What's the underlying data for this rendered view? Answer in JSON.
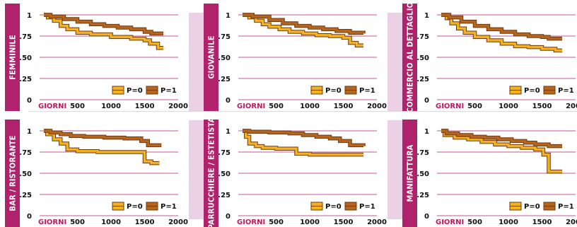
{
  "colors": {
    "side_bar": "#b0226b",
    "grid": "#b0226b",
    "axis_title": "#c2185b",
    "background_band": "#ebd0e6",
    "series_p0": "#f4b223",
    "series_p1": "#b5651d",
    "outline": "#6b3a12"
  },
  "chart_data": [
    {
      "type": "line",
      "title": "FEMMINILE",
      "xlabel": "GIORNI",
      "ylabel": "",
      "xlim": [
        0,
        2000
      ],
      "ylim": [
        0,
        1
      ],
      "xticks": [
        "500",
        "1000",
        "1500",
        "2000"
      ],
      "yticks": [
        "0",
        ".25",
        ".50",
        ".75",
        "1"
      ],
      "legend_position": "bottom-right",
      "series": [
        {
          "name": "P=0",
          "points": [
            [
              0,
              1
            ],
            [
              60,
              0.97
            ],
            [
              150,
              0.93
            ],
            [
              250,
              0.87
            ],
            [
              350,
              0.83
            ],
            [
              500,
              0.79
            ],
            [
              700,
              0.77
            ],
            [
              1000,
              0.74
            ],
            [
              1300,
              0.72
            ],
            [
              1500,
              0.7
            ],
            [
              1580,
              0.66
            ],
            [
              1700,
              0.61
            ],
            [
              1780,
              0.61
            ]
          ]
        },
        {
          "name": "P=1",
          "points": [
            [
              0,
              1
            ],
            [
              100,
              0.98
            ],
            [
              300,
              0.95
            ],
            [
              500,
              0.92
            ],
            [
              700,
              0.89
            ],
            [
              900,
              0.87
            ],
            [
              1100,
              0.85
            ],
            [
              1300,
              0.83
            ],
            [
              1500,
              0.8
            ],
            [
              1600,
              0.78
            ],
            [
              1780,
              0.78
            ]
          ]
        }
      ]
    },
    {
      "type": "line",
      "title": "GIOVANILE",
      "xlabel": "GIORNI",
      "ylabel": "",
      "xlim": [
        0,
        2000
      ],
      "ylim": [
        0,
        1
      ],
      "xticks": [
        "500",
        "1000",
        "1500",
        "2000"
      ],
      "yticks": [
        "0",
        ".25",
        ".50",
        ".75",
        "1"
      ],
      "legend_position": "bottom-right",
      "series": [
        {
          "name": "P=0",
          "points": [
            [
              0,
              1
            ],
            [
              100,
              0.97
            ],
            [
              200,
              0.93
            ],
            [
              300,
              0.89
            ],
            [
              400,
              0.86
            ],
            [
              550,
              0.83
            ],
            [
              700,
              0.8
            ],
            [
              900,
              0.78
            ],
            [
              1100,
              0.76
            ],
            [
              1300,
              0.75
            ],
            [
              1500,
              0.73
            ],
            [
              1600,
              0.67
            ],
            [
              1700,
              0.64
            ],
            [
              1800,
              0.64
            ]
          ]
        },
        {
          "name": "P=1",
          "points": [
            [
              0,
              1
            ],
            [
              150,
              0.98
            ],
            [
              400,
              0.94
            ],
            [
              600,
              0.9
            ],
            [
              800,
              0.87
            ],
            [
              1000,
              0.85
            ],
            [
              1200,
              0.83
            ],
            [
              1400,
              0.81
            ],
            [
              1600,
              0.79
            ],
            [
              1800,
              0.78
            ]
          ]
        }
      ]
    },
    {
      "type": "line",
      "title": "COMMERCIO AL DETTAGLIO",
      "xlabel": "GIORNI",
      "ylabel": "",
      "xlim": [
        0,
        2000
      ],
      "ylim": [
        0,
        1
      ],
      "xticks": [
        "500",
        "1000",
        "1500",
        "2000"
      ],
      "yticks": [
        "0",
        ".25",
        ".50",
        ".75",
        "1"
      ],
      "legend_position": "bottom-right",
      "series": [
        {
          "name": "P=0",
          "points": [
            [
              0,
              1
            ],
            [
              80,
              0.96
            ],
            [
              150,
              0.9
            ],
            [
              250,
              0.84
            ],
            [
              350,
              0.79
            ],
            [
              500,
              0.74
            ],
            [
              700,
              0.7
            ],
            [
              900,
              0.66
            ],
            [
              1100,
              0.63
            ],
            [
              1300,
              0.62
            ],
            [
              1500,
              0.6
            ],
            [
              1700,
              0.58
            ],
            [
              1800,
              0.58
            ]
          ]
        },
        {
          "name": "P=1",
          "points": [
            [
              0,
              1
            ],
            [
              120,
              0.97
            ],
            [
              300,
              0.92
            ],
            [
              500,
              0.87
            ],
            [
              700,
              0.83
            ],
            [
              900,
              0.8
            ],
            [
              1100,
              0.77
            ],
            [
              1300,
              0.75
            ],
            [
              1500,
              0.74
            ],
            [
              1600,
              0.72
            ],
            [
              1800,
              0.72
            ]
          ]
        }
      ]
    },
    {
      "type": "line",
      "title": "BAR / RISTORANTE",
      "xlabel": "GIORNI",
      "ylabel": "",
      "xlim": [
        0,
        2000
      ],
      "ylim": [
        0,
        1
      ],
      "xticks": [
        "500",
        "1000",
        "1500",
        "2000"
      ],
      "yticks": [
        "0",
        ".25",
        ".50",
        ".75",
        "1"
      ],
      "legend_position": "bottom-right",
      "series": [
        {
          "name": "P=0",
          "points": [
            [
              0,
              1
            ],
            [
              50,
              0.96
            ],
            [
              150,
              0.9
            ],
            [
              250,
              0.85
            ],
            [
              350,
              0.78
            ],
            [
              500,
              0.76
            ],
            [
              800,
              0.75
            ],
            [
              1200,
              0.75
            ],
            [
              1470,
              0.75
            ],
            [
              1500,
              0.64
            ],
            [
              1600,
              0.62
            ],
            [
              1720,
              0.62
            ]
          ]
        },
        {
          "name": "P=1",
          "points": [
            [
              0,
              1
            ],
            [
              100,
              0.98
            ],
            [
              250,
              0.96
            ],
            [
              400,
              0.94
            ],
            [
              600,
              0.93
            ],
            [
              900,
              0.92
            ],
            [
              1200,
              0.91
            ],
            [
              1450,
              0.88
            ],
            [
              1550,
              0.83
            ],
            [
              1750,
              0.83
            ]
          ]
        }
      ]
    },
    {
      "type": "line",
      "title": "PARRUCCHIERE / ESTETISTA",
      "xlabel": "GIORNI",
      "ylabel": "",
      "xlim": [
        0,
        2000
      ],
      "ylim": [
        0,
        1
      ],
      "xticks": [
        "500",
        "1000",
        "1500",
        "2000"
      ],
      "yticks": [
        "0",
        ".25",
        ".50",
        ".75",
        "1"
      ],
      "legend_position": "bottom-right",
      "series": [
        {
          "name": "P=0",
          "points": [
            [
              0,
              1
            ],
            [
              50,
              0.93
            ],
            [
              100,
              0.85
            ],
            [
              200,
              0.82
            ],
            [
              300,
              0.8
            ],
            [
              500,
              0.79
            ],
            [
              700,
              0.79
            ],
            [
              800,
              0.73
            ],
            [
              1000,
              0.72
            ],
            [
              1400,
              0.72
            ],
            [
              1800,
              0.72
            ]
          ]
        },
        {
          "name": "P=1",
          "points": [
            [
              0,
              1
            ],
            [
              100,
              0.99
            ],
            [
              400,
              0.98
            ],
            [
              700,
              0.97
            ],
            [
              900,
              0.95
            ],
            [
              1100,
              0.93
            ],
            [
              1300,
              0.91
            ],
            [
              1450,
              0.88
            ],
            [
              1600,
              0.83
            ],
            [
              1800,
              0.82
            ]
          ]
        }
      ]
    },
    {
      "type": "line",
      "title": "MANIFATTURA",
      "xlabel": "GIORNI",
      "ylabel": "",
      "xlim": [
        0,
        2000
      ],
      "ylim": [
        0,
        1
      ],
      "xticks": [
        "500",
        "1000",
        "1500",
        "2000"
      ],
      "yticks": [
        "0",
        ".25",
        ".50",
        ".75",
        "1"
      ],
      "legend_position": "bottom-right",
      "series": [
        {
          "name": "P=0",
          "points": [
            [
              0,
              1
            ],
            [
              50,
              0.95
            ],
            [
              200,
              0.92
            ],
            [
              400,
              0.9
            ],
            [
              600,
              0.87
            ],
            [
              800,
              0.84
            ],
            [
              1000,
              0.82
            ],
            [
              1200,
              0.8
            ],
            [
              1400,
              0.78
            ],
            [
              1520,
              0.72
            ],
            [
              1600,
              0.52
            ],
            [
              1800,
              0.52
            ]
          ]
        },
        {
          "name": "P=1",
          "points": [
            [
              0,
              1
            ],
            [
              80,
              0.97
            ],
            [
              250,
              0.95
            ],
            [
              450,
              0.93
            ],
            [
              650,
              0.92
            ],
            [
              850,
              0.9
            ],
            [
              1050,
              0.88
            ],
            [
              1250,
              0.86
            ],
            [
              1400,
              0.84
            ],
            [
              1600,
              0.82
            ],
            [
              1800,
              0.82
            ]
          ]
        }
      ]
    }
  ]
}
